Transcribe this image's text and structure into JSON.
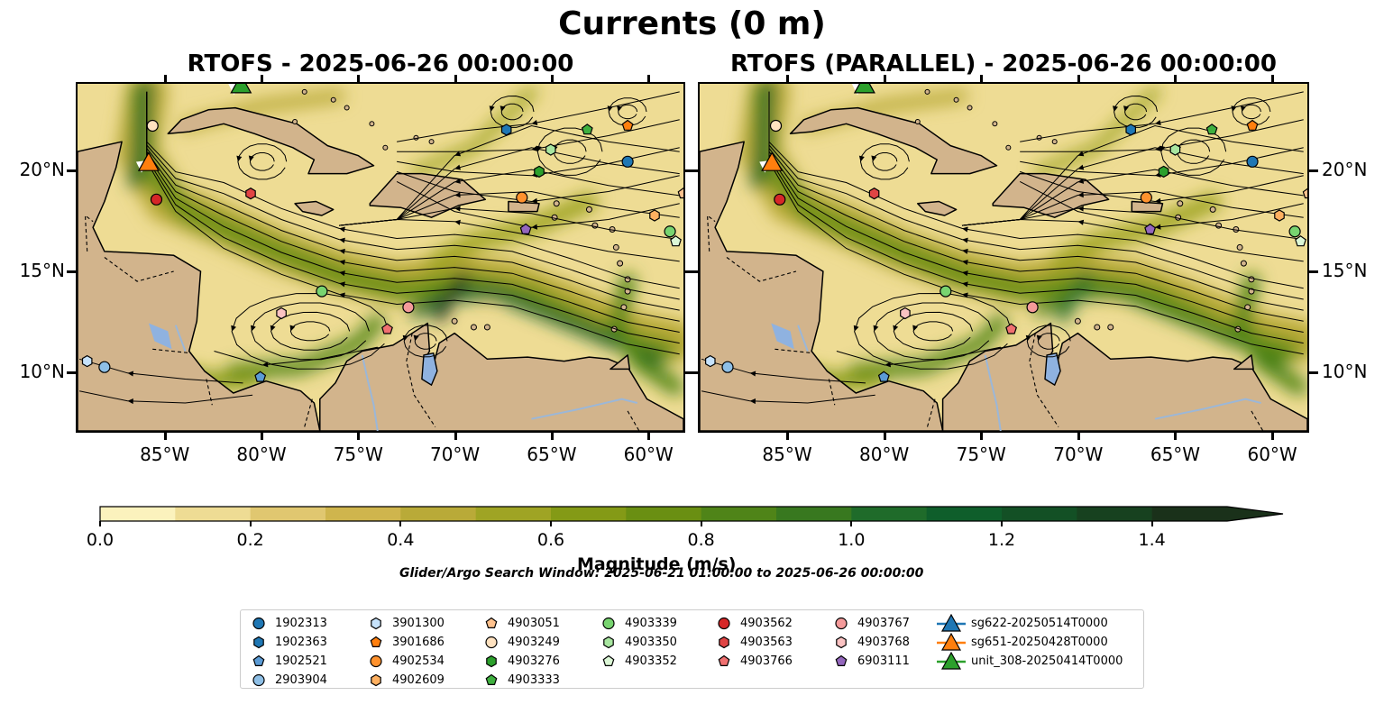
{
  "title": "Currents (0 m)",
  "panels": [
    {
      "title": "RTOFS - 2025-06-26 00:00:00"
    },
    {
      "title": "RTOFS (PARALLEL) - 2025-06-26 00:00:00"
    }
  ],
  "axes": {
    "x_ticks": [
      "85°W",
      "80°W",
      "75°W",
      "70°W",
      "65°W",
      "60°W"
    ],
    "y_ticks": [
      "20°N",
      "15°N",
      "10°N"
    ]
  },
  "colorbar": {
    "label": "Magnitude (m/s)",
    "ticks": [
      "0.0",
      "0.2",
      "0.4",
      "0.6",
      "0.8",
      "1.0",
      "1.2",
      "1.4"
    ],
    "range": [
      0.0,
      1.5
    ],
    "extend": "max",
    "colors": [
      "#fbf2bd",
      "#eedc94",
      "#e0c770",
      "#cfb54d",
      "#b9aa38",
      "#9fa424",
      "#849a16",
      "#6a8f12",
      "#4f8418",
      "#38781f",
      "#1f6b2a",
      "#0f5e2b",
      "#135025",
      "#17411f",
      "#1a311a"
    ]
  },
  "search_window": "Glider/Argo Search Window: 2025-06-21 01:00:00 to 2025-06-26 00:00:00",
  "legend": {
    "columns": [
      [
        {
          "label": "1902313",
          "marker": "circle",
          "color": "#1f77b4"
        },
        {
          "label": "1902363",
          "marker": "hexagon",
          "color": "#1f77b4"
        },
        {
          "label": "1902521",
          "marker": "pentagon",
          "color": "#5b9bd5"
        },
        {
          "label": "2903904",
          "marker": "circle",
          "color": "#8ebfe6"
        }
      ],
      [
        {
          "label": "3901300",
          "marker": "hexagon",
          "color": "#c6e2fb"
        },
        {
          "label": "3901686",
          "marker": "pentagon",
          "color": "#ff7f0e"
        },
        {
          "label": "4902534",
          "marker": "circle",
          "color": "#ff922e"
        },
        {
          "label": "4902609",
          "marker": "hexagon",
          "color": "#ffb060"
        }
      ],
      [
        {
          "label": "4903051",
          "marker": "pentagon",
          "color": "#ffc28e"
        },
        {
          "label": "4903249",
          "marker": "circle",
          "color": "#ffe2c0"
        },
        {
          "label": "4903276",
          "marker": "hexagon",
          "color": "#2ca02c"
        },
        {
          "label": "4903333",
          "marker": "pentagon",
          "color": "#3fb03f"
        }
      ],
      [
        {
          "label": "4903339",
          "marker": "circle",
          "color": "#78d470"
        },
        {
          "label": "4903350",
          "marker": "hexagon",
          "color": "#a8e6a0"
        },
        {
          "label": "4903352",
          "marker": "pentagon",
          "color": "#dcf7d6"
        }
      ],
      [
        {
          "label": "4903562",
          "marker": "circle",
          "color": "#d62728"
        },
        {
          "label": "4903563",
          "marker": "hexagon",
          "color": "#e04444"
        },
        {
          "label": "4903766",
          "marker": "pentagon",
          "color": "#f07070"
        }
      ],
      [
        {
          "label": "4903767",
          "marker": "circle",
          "color": "#f49a9a"
        },
        {
          "label": "4903768",
          "marker": "hexagon",
          "color": "#fac2c2"
        },
        {
          "label": "6903111",
          "marker": "pentagon",
          "color": "#9467bd"
        }
      ],
      [
        {
          "label": "sg622-20250514T0000",
          "marker": "triangle",
          "color": "#1f77b4"
        },
        {
          "label": "sg651-20250428T0000",
          "marker": "triangle",
          "color": "#ff7f0e"
        },
        {
          "label": "unit_308-20250414T0000",
          "marker": "triangle",
          "color": "#2ca02c"
        }
      ]
    ]
  },
  "platforms": [
    {
      "label": "1902313",
      "lon": -61,
      "lat": 20.5
    },
    {
      "label": "1902363",
      "lon": -67.3,
      "lat": 22.1
    },
    {
      "label": "1902521",
      "lon": -80.1,
      "lat": 9.7
    },
    {
      "label": "2903904",
      "lon": -88.2,
      "lat": 10.2
    },
    {
      "label": "3901300",
      "lon": -89.1,
      "lat": 10.5
    },
    {
      "label": "3901686",
      "lon": -61,
      "lat": 22.3
    },
    {
      "label": "4902534",
      "lon": -66.5,
      "lat": 18.7
    },
    {
      "label": "4902609",
      "lon": -59.6,
      "lat": 17.8
    },
    {
      "label": "4903051",
      "lon": -58.1,
      "lat": 18.9
    },
    {
      "label": "4903249",
      "lon": -85.7,
      "lat": 22.3
    },
    {
      "label": "4903276",
      "lon": -65.6,
      "lat": 20
    },
    {
      "label": "4903333",
      "lon": -63.1,
      "lat": 22.1
    },
    {
      "label": "4903339",
      "lon": -58.8,
      "lat": 17
    },
    {
      "label": "4903350",
      "lon": -65,
      "lat": 21.1
    },
    {
      "label": "4903352",
      "lon": -58.5,
      "lat": 16.5
    },
    {
      "label": "4903562",
      "lon": -85.5,
      "lat": 18.6
    },
    {
      "label": "4903563",
      "lon": -80.6,
      "lat": 18.9
    },
    {
      "label": "4903766",
      "lon": -73.5,
      "lat": 12.1
    },
    {
      "label": "4903767",
      "lon": -72.4,
      "lat": 13.2
    },
    {
      "label": "4903768",
      "lon": -79,
      "lat": 12.9
    },
    {
      "label": "6903111",
      "lon": -66.3,
      "lat": 17.1
    },
    {
      "label": "4903339",
      "lon": -76.9,
      "lat": 14
    },
    {
      "label": "sg651-20250428T0000",
      "lon": -85.9,
      "lat": 20.4
    },
    {
      "label": "unit_308-20250414T0000",
      "lon": -81.1,
      "lat": 24.3
    }
  ],
  "map_extent": {
    "lon": [
      -89.6,
      -58.1
    ],
    "lat": [
      7.0,
      24.4
    ]
  },
  "land_color": "#d2b48c",
  "lake_color": "#8fb2e0"
}
